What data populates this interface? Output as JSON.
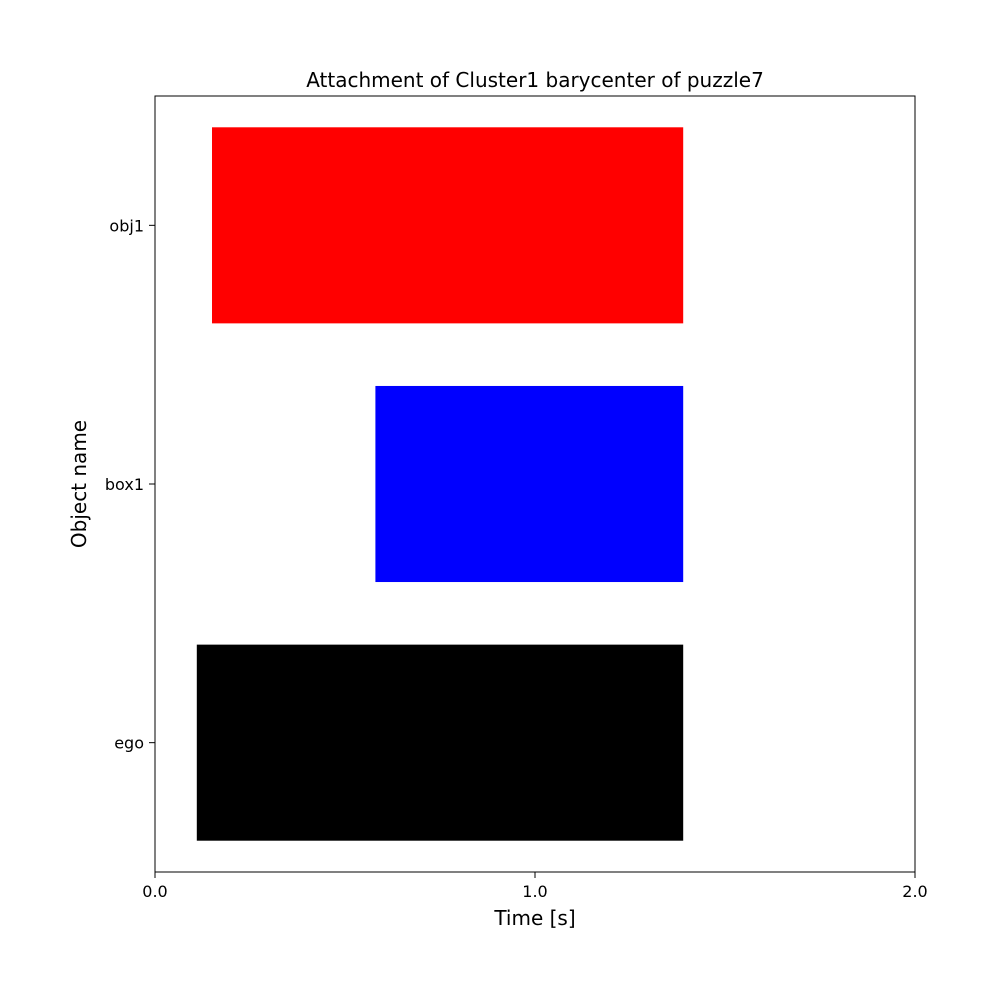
{
  "chart_data": {
    "type": "bar",
    "orientation": "horizontal",
    "title": "Attachment of Cluster1 barycenter of puzzle7",
    "xlabel": "Time [s]",
    "ylabel": "Object name",
    "xlim": [
      0.0,
      2.0
    ],
    "xticks": [
      0.0,
      1.0,
      2.0
    ],
    "xtick_labels": [
      "0.0",
      "1.0",
      "2.0"
    ],
    "categories": [
      "ego",
      "box1",
      "obj1"
    ],
    "bars": [
      {
        "category": "ego",
        "start": 0.11,
        "end": 1.39,
        "color": "#000000"
      },
      {
        "category": "box1",
        "start": 0.58,
        "end": 1.39,
        "color": "#0000ff"
      },
      {
        "category": "obj1",
        "start": 0.15,
        "end": 1.39,
        "color": "#ff0000"
      }
    ],
    "grid": false,
    "legend": "none"
  }
}
